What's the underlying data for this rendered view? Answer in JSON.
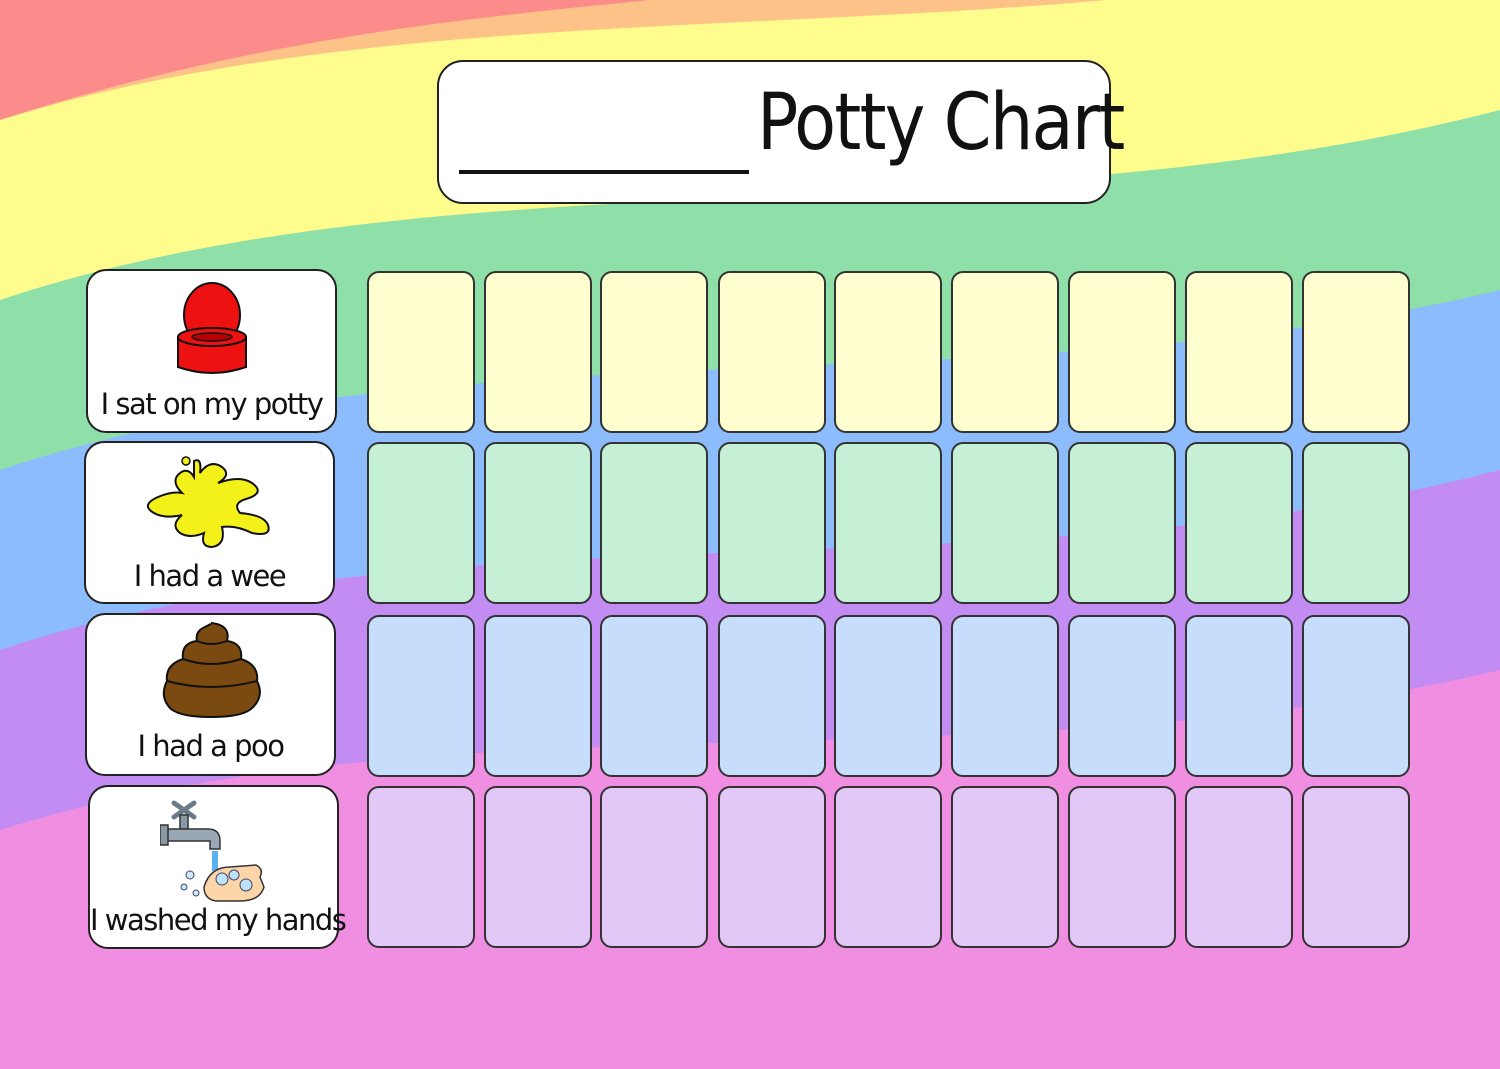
{
  "title": {
    "text": "Potty Chart"
  },
  "rows": [
    {
      "label": "I sat on my potty",
      "icon": "potty-icon",
      "cell_color": "#ffffd0"
    },
    {
      "label": "I had a wee",
      "icon": "wee-splash-icon",
      "cell_color": "#c6f0d6"
    },
    {
      "label": "I had a poo",
      "icon": "poo-icon",
      "cell_color": "#c6ddfc"
    },
    {
      "label": "I washed my hands",
      "icon": "hand-washing-icon",
      "cell_color": "#e2c8f6"
    }
  ],
  "cells_per_row": 9,
  "rainbow_colors": [
    "#fc8c8c",
    "#fdc288",
    "#fdfc8c",
    "#8ee0a8",
    "#8cbcfb",
    "#c38cf2",
    "#f08ee2"
  ]
}
